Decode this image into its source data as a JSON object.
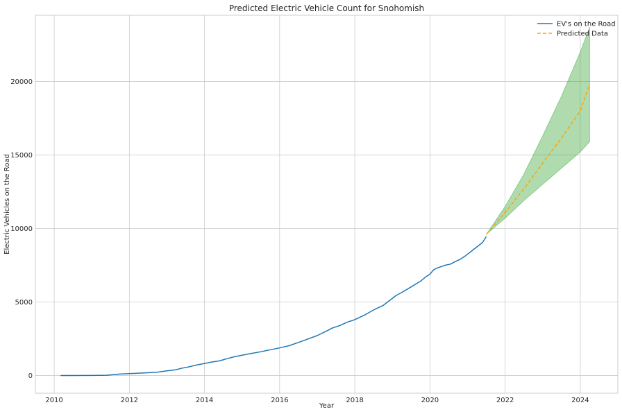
{
  "chart_data": {
    "type": "line",
    "title": "Predicted Electric Vehicle Count for Snohomish",
    "xlabel": "Year",
    "ylabel": "Electric Vehicles on the Road",
    "xlim": [
      2009.5,
      2025.0
    ],
    "ylim": [
      -1200,
      24500
    ],
    "xticks": [
      2010,
      2012,
      2014,
      2016,
      2018,
      2020,
      2022,
      2024
    ],
    "xtick_labels": [
      "2010",
      "2012",
      "2014",
      "2016",
      "2018",
      "2020",
      "2022",
      "2024"
    ],
    "yticks": [
      0,
      5000,
      10000,
      15000,
      20000
    ],
    "ytick_labels": [
      "0",
      "5000",
      "10000",
      "15000",
      "20000"
    ],
    "grid": true,
    "legend_position": "top-right",
    "legend": [
      "EV's on the Road",
      "Predicted Data"
    ],
    "colors": {
      "actual": "#1f77b4",
      "predicted": "#ffa500",
      "confidence": "#2ca02c",
      "grid": "#cccccc",
      "axes": "#cccccc",
      "text": "#262626"
    },
    "series": [
      {
        "name": "EV's on the Road",
        "style": "solid",
        "x": [
          2010.17,
          2010.5,
          2011.0,
          2011.4,
          2011.6,
          2011.75,
          2012.0,
          2012.25,
          2012.5,
          2012.75,
          2013.0,
          2013.25,
          2013.4,
          2013.6,
          2013.8,
          2014.0,
          2014.2,
          2014.4,
          2014.6,
          2014.8,
          2015.0,
          2015.2,
          2015.5,
          2015.8,
          2016.0,
          2016.25,
          2016.5,
          2016.75,
          2017.0,
          2017.25,
          2017.4,
          2017.6,
          2017.8,
          2018.0,
          2018.25,
          2018.5,
          2018.75,
          2019.0,
          2019.1,
          2019.25,
          2019.5,
          2019.75,
          2019.9,
          2020.0,
          2020.1,
          2020.2,
          2020.4,
          2020.55,
          2020.65,
          2020.8,
          2020.95,
          2021.1,
          2021.25,
          2021.4,
          2021.5
        ],
        "y": [
          0,
          5,
          8,
          20,
          70,
          100,
          130,
          160,
          190,
          230,
          320,
          400,
          500,
          600,
          720,
          820,
          920,
          1000,
          1150,
          1280,
          1380,
          1480,
          1620,
          1780,
          1880,
          2030,
          2250,
          2480,
          2720,
          3030,
          3230,
          3400,
          3630,
          3800,
          4100,
          4460,
          4760,
          5250,
          5450,
          5650,
          6030,
          6420,
          6730,
          6900,
          7200,
          7320,
          7500,
          7580,
          7720,
          7900,
          8150,
          8450,
          8750,
          9050,
          9450
        ]
      },
      {
        "name": "Predicted Data",
        "style": "dashed",
        "x": [
          2021.5,
          2022.0,
          2022.5,
          2023.0,
          2023.5,
          2024.0,
          2024.25
        ],
        "y": [
          9600,
          11100,
          12700,
          14450,
          16150,
          18000,
          19800
        ]
      }
    ],
    "confidence_band": {
      "x": [
        2021.5,
        2022.0,
        2022.5,
        2023.0,
        2023.5,
        2024.0,
        2024.25
      ],
      "upper": [
        9600,
        11500,
        13700,
        16300,
        19000,
        22000,
        23700
      ],
      "lower": [
        9600,
        10700,
        11900,
        13000,
        14100,
        15200,
        15900
      ]
    }
  }
}
